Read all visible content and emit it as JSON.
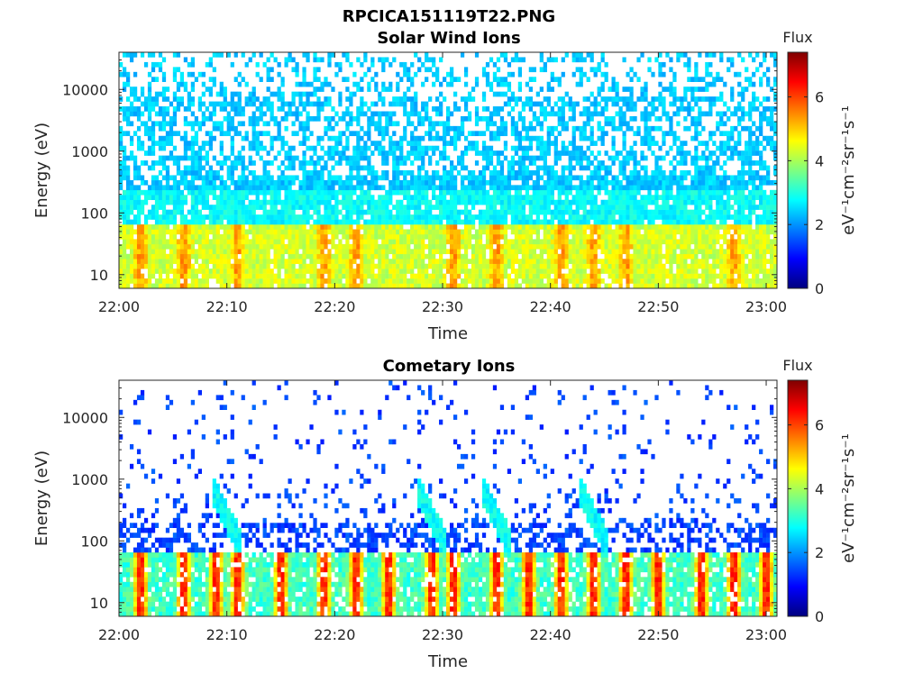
{
  "figure_title": "RPCICA151119T22.PNG",
  "colormap": {
    "name": "jet",
    "stops": [
      "#00007f",
      "#0000ff",
      "#007fff",
      "#00ffff",
      "#7fff7f",
      "#ffff00",
      "#ff7f00",
      "#ff0000",
      "#7f0000"
    ]
  },
  "chart_data": [
    {
      "type": "heatmap",
      "title": "Solar Wind Ions",
      "xlabel": "Time",
      "ylabel": "Energy (eV)",
      "x_ticks": [
        "22:00",
        "22:10",
        "22:20",
        "22:30",
        "22:40",
        "22:50",
        "23:00"
      ],
      "xlim": [
        "22:00",
        "23:01"
      ],
      "y_scale": "log",
      "y_ticks": [
        "10",
        "100",
        "1000",
        "10000"
      ],
      "ylim": [
        6,
        40000
      ],
      "colorbar": {
        "label": "Flux",
        "units": "eV⁻¹cm⁻²sr⁻¹s⁻¹",
        "ticks": [
          "0",
          "2",
          "4",
          "6"
        ],
        "range": [
          0,
          7.4
        ]
      },
      "pattern": {
        "background_flux": 2.4,
        "low_energy_flux": 4.3,
        "high_energy_fill": 0.55,
        "burst_times": [
          "22:02",
          "22:06",
          "22:11",
          "22:19",
          "22:22",
          "22:31",
          "22:35",
          "22:41",
          "22:44",
          "22:47",
          "22:57"
        ]
      }
    },
    {
      "type": "heatmap",
      "title": "Cometary Ions",
      "xlabel": "Time",
      "ylabel": "Energy (eV)",
      "x_ticks": [
        "22:00",
        "22:10",
        "22:20",
        "22:30",
        "22:40",
        "22:50",
        "23:00"
      ],
      "xlim": [
        "22:00",
        "23:01"
      ],
      "y_scale": "log",
      "y_ticks": [
        "10",
        "100",
        "1000",
        "10000"
      ],
      "ylim": [
        6,
        40000
      ],
      "colorbar": {
        "label": "Flux",
        "units": "eV⁻¹cm⁻²sr⁻¹s⁻¹",
        "ticks": [
          "0",
          "2",
          "4",
          "6"
        ],
        "range": [
          0,
          7.4
        ]
      },
      "pattern": {
        "background_flux": 1.4,
        "low_energy_flux": 3.2,
        "high_energy_fill": 0.06,
        "burst_times": [
          "22:02",
          "22:06",
          "22:09",
          "22:11",
          "22:15",
          "22:19",
          "22:22",
          "22:25",
          "22:29",
          "22:31",
          "22:35",
          "22:38",
          "22:41",
          "22:44",
          "22:47",
          "22:50",
          "22:54",
          "22:57",
          "23:00"
        ],
        "dispersion_events": [
          "22:10",
          "22:29",
          "22:35",
          "22:44"
        ]
      }
    }
  ]
}
